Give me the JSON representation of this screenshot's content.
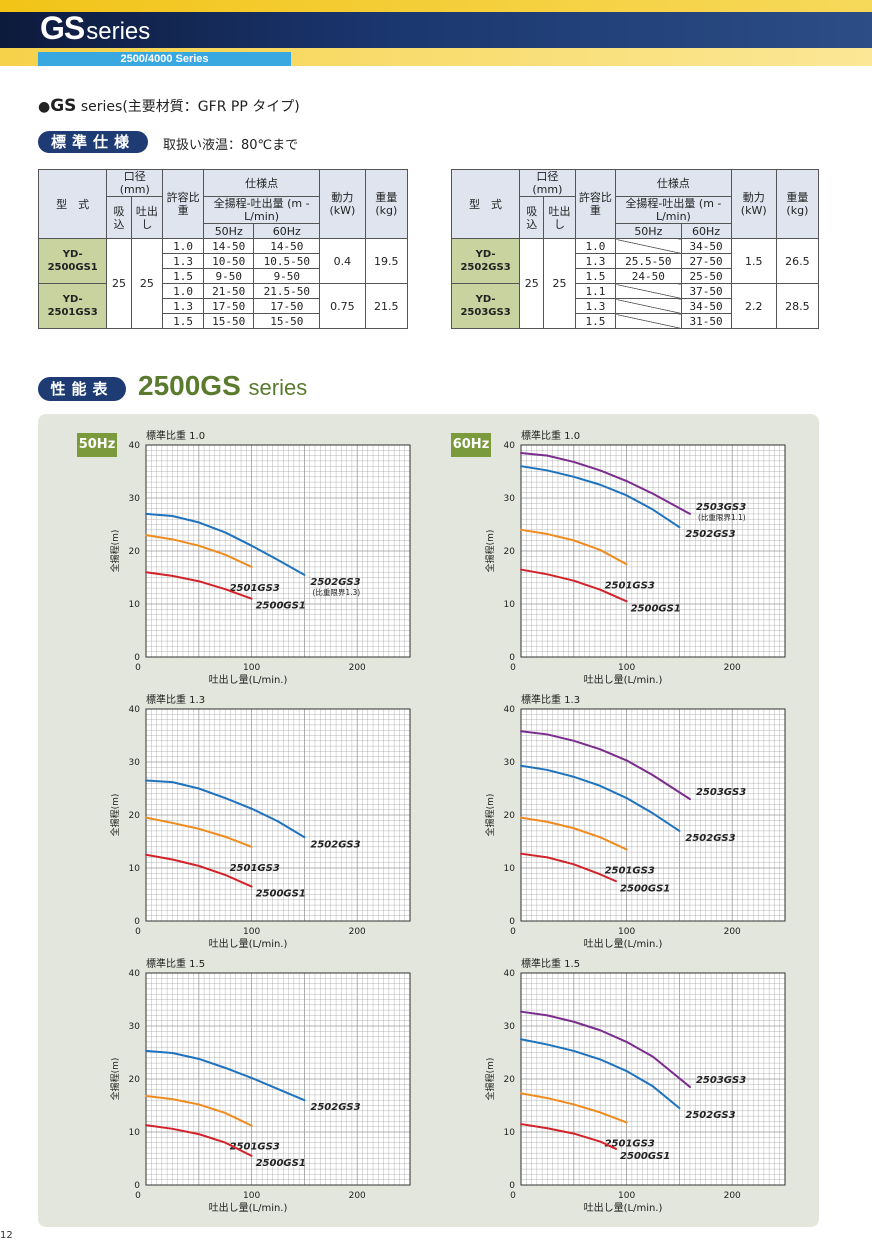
{
  "header": {
    "logo_main": "GS",
    "logo_sub": "series",
    "subtab": "2500/4000 Series"
  },
  "page_title": {
    "bullet": "●",
    "main": "GS",
    "rest": " series(主要材質：GFR PP タイプ)"
  },
  "spec": {
    "badge": "標準仕様",
    "liquid_temp": "取扱い液温：80℃まで"
  },
  "spec_table": {
    "headers": {
      "model": "型　式",
      "bore": "口径(mm)",
      "suction": "吸込",
      "discharge": "吐出し",
      "gravity": "許容比重",
      "spec_point": "仕様点",
      "spec_sub": "全揚程-吐出量 (m - L/min)",
      "hz50": "50Hz",
      "hz60": "60Hz",
      "power": "動力(kW)",
      "weight": "重量(kg)"
    },
    "left": {
      "bore_suction": "25",
      "bore_discharge": "25",
      "models": [
        {
          "name": "YD-2500GS1",
          "power": "0.4",
          "weight": "19.5",
          "rows": [
            [
              "1.0",
              "14-50",
              "14-50"
            ],
            [
              "1.3",
              "10-50",
              "10.5-50"
            ],
            [
              "1.5",
              "9-50",
              "9-50"
            ]
          ]
        },
        {
          "name": "YD-2501GS3",
          "power": "0.75",
          "weight": "21.5",
          "rows": [
            [
              "1.0",
              "21-50",
              "21.5-50"
            ],
            [
              "1.3",
              "17-50",
              "17-50"
            ],
            [
              "1.5",
              "15-50",
              "15-50"
            ]
          ]
        }
      ]
    },
    "right": {
      "bore_suction": "25",
      "bore_discharge": "25",
      "models": [
        {
          "name": "YD-2502GS3",
          "power": "1.5",
          "weight": "26.5",
          "rows": [
            [
              "1.0",
              "",
              "34-50"
            ],
            [
              "1.3",
              "25.5-50",
              "27-50"
            ],
            [
              "1.5",
              "24-50",
              "25-50"
            ]
          ]
        },
        {
          "name": "YD-2503GS3",
          "power": "2.2",
          "weight": "28.5",
          "rows": [
            [
              "1.1",
              "",
              "37-50"
            ],
            [
              "1.3",
              "",
              "34-50"
            ],
            [
              "1.5",
              "",
              "31-50"
            ]
          ]
        }
      ]
    }
  },
  "performance": {
    "badge": "性能表",
    "title": "2500GS",
    "title_suffix": "series",
    "hz50": "50Hz",
    "hz60": "60Hz"
  },
  "colors": {
    "2500GS1": "#d2232a",
    "2501GS3": "#f08c1e",
    "2502GS3": "#1e73be",
    "2503GS3": "#7b2d8e",
    "grid": "#9a9a9a"
  },
  "chart_data": [
    {
      "type": "line",
      "title": "標準比重 1.0",
      "frequency": "50Hz",
      "xlabel": "吐出し量(L/min.)",
      "ylabel": "全揚程(m)",
      "xlim": [
        0,
        250
      ],
      "ylim": [
        0,
        40
      ],
      "xticks": [
        0,
        100,
        200
      ],
      "yticks": [
        0,
        10,
        20,
        30,
        40
      ],
      "grid": true,
      "series": [
        {
          "name": "2502GS3",
          "note": "(比重限界1.3)",
          "color": "#1e73be",
          "x": [
            0,
            25,
            50,
            75,
            100,
            125,
            150
          ],
          "y": [
            27,
            26.6,
            25.4,
            23.5,
            21,
            18.3,
            15.5
          ]
        },
        {
          "name": "2501GS3",
          "color": "#f08c1e",
          "x": [
            0,
            25,
            50,
            75,
            100
          ],
          "y": [
            23,
            22.2,
            21,
            19.3,
            17
          ]
        },
        {
          "name": "2500GS1",
          "color": "#d2232a",
          "x": [
            0,
            25,
            50,
            75,
            100
          ],
          "y": [
            16,
            15.3,
            14.3,
            12.8,
            11
          ]
        }
      ]
    },
    {
      "type": "line",
      "title": "標準比重 1.0",
      "frequency": "60Hz",
      "xlabel": "吐出し量(L/min.)",
      "ylabel": "全揚程(m)",
      "xlim": [
        0,
        250
      ],
      "ylim": [
        0,
        40
      ],
      "xticks": [
        0,
        100,
        200
      ],
      "yticks": [
        0,
        10,
        20,
        30,
        40
      ],
      "grid": true,
      "series": [
        {
          "name": "2503GS3",
          "note": "(比重限界1.1)",
          "color": "#7b2d8e",
          "x": [
            0,
            25,
            50,
            75,
            100,
            125,
            160
          ],
          "y": [
            38.5,
            38,
            36.8,
            35.2,
            33.2,
            30.8,
            27
          ]
        },
        {
          "name": "2502GS3",
          "color": "#1e73be",
          "x": [
            0,
            25,
            50,
            75,
            100,
            125,
            150
          ],
          "y": [
            36,
            35.2,
            34,
            32.5,
            30.5,
            27.8,
            24.5
          ]
        },
        {
          "name": "2501GS3",
          "color": "#f08c1e",
          "x": [
            0,
            25,
            50,
            75,
            100
          ],
          "y": [
            24,
            23.2,
            22,
            20.2,
            17.5
          ]
        },
        {
          "name": "2500GS1",
          "color": "#d2232a",
          "x": [
            0,
            25,
            50,
            75,
            100
          ],
          "y": [
            16.5,
            15.6,
            14.4,
            12.7,
            10.5
          ]
        }
      ]
    },
    {
      "type": "line",
      "title": "標準比重 1.3",
      "frequency": "50Hz",
      "xlabel": "吐出し量(L/min.)",
      "ylabel": "全揚程(m)",
      "xlim": [
        0,
        250
      ],
      "ylim": [
        0,
        40
      ],
      "xticks": [
        0,
        100,
        200
      ],
      "yticks": [
        0,
        10,
        20,
        30,
        40
      ],
      "grid": true,
      "series": [
        {
          "name": "2502GS3",
          "color": "#1e73be",
          "x": [
            0,
            25,
            50,
            75,
            100,
            125,
            150
          ],
          "y": [
            26.5,
            26.2,
            25,
            23.2,
            21.2,
            18.8,
            15.8
          ]
        },
        {
          "name": "2501GS3",
          "color": "#f08c1e",
          "x": [
            0,
            25,
            50,
            75,
            100
          ],
          "y": [
            19.5,
            18.5,
            17.4,
            15.9,
            14
          ]
        },
        {
          "name": "2500GS1",
          "color": "#d2232a",
          "x": [
            0,
            25,
            50,
            75,
            100
          ],
          "y": [
            12.5,
            11.6,
            10.4,
            8.7,
            6.5
          ]
        }
      ]
    },
    {
      "type": "line",
      "title": "標準比重 1.3",
      "frequency": "60Hz",
      "xlabel": "吐出し量(L/min.)",
      "ylabel": "全揚程(m)",
      "xlim": [
        0,
        250
      ],
      "ylim": [
        0,
        40
      ],
      "xticks": [
        0,
        100,
        200
      ],
      "yticks": [
        0,
        10,
        20,
        30,
        40
      ],
      "grid": true,
      "series": [
        {
          "name": "2503GS3",
          "color": "#7b2d8e",
          "x": [
            0,
            25,
            50,
            75,
            100,
            125,
            160
          ],
          "y": [
            35.8,
            35.2,
            34,
            32.4,
            30.3,
            27.5,
            23
          ]
        },
        {
          "name": "2502GS3",
          "color": "#1e73be",
          "x": [
            0,
            25,
            50,
            75,
            100,
            125,
            150
          ],
          "y": [
            29.3,
            28.5,
            27.2,
            25.5,
            23.2,
            20.3,
            17
          ]
        },
        {
          "name": "2501GS3",
          "color": "#f08c1e",
          "x": [
            0,
            25,
            50,
            75,
            100
          ],
          "y": [
            19.5,
            18.7,
            17.5,
            15.8,
            13.5
          ]
        },
        {
          "name": "2500GS1",
          "color": "#d2232a",
          "x": [
            0,
            25,
            50,
            75,
            90
          ],
          "y": [
            12.7,
            12,
            10.7,
            8.8,
            7.5
          ]
        }
      ]
    },
    {
      "type": "line",
      "title": "標準比重 1.5",
      "frequency": "50Hz",
      "xlabel": "吐出し量(L/min.)",
      "ylabel": "全揚程(m)",
      "xlim": [
        0,
        250
      ],
      "ylim": [
        0,
        40
      ],
      "xticks": [
        0,
        100,
        200
      ],
      "yticks": [
        0,
        10,
        20,
        30,
        40
      ],
      "grid": true,
      "series": [
        {
          "name": "2502GS3",
          "color": "#1e73be",
          "x": [
            0,
            25,
            50,
            75,
            100,
            125,
            150
          ],
          "y": [
            25.3,
            24.9,
            23.8,
            22.1,
            20.2,
            18.1,
            16
          ]
        },
        {
          "name": "2501GS3",
          "color": "#f08c1e",
          "x": [
            0,
            25,
            50,
            75,
            100
          ],
          "y": [
            16.8,
            16.2,
            15.2,
            13.6,
            11.2
          ]
        },
        {
          "name": "2500GS1",
          "color": "#d2232a",
          "x": [
            0,
            25,
            50,
            75,
            100
          ],
          "y": [
            11.3,
            10.6,
            9.6,
            8,
            5.5
          ]
        }
      ]
    },
    {
      "type": "line",
      "title": "標準比重 1.5",
      "frequency": "60Hz",
      "xlabel": "吐出し量(L/min.)",
      "ylabel": "全揚程(m)",
      "xlim": [
        0,
        250
      ],
      "ylim": [
        0,
        40
      ],
      "xticks": [
        0,
        100,
        200
      ],
      "yticks": [
        0,
        10,
        20,
        30,
        40
      ],
      "grid": true,
      "series": [
        {
          "name": "2503GS3",
          "color": "#7b2d8e",
          "x": [
            0,
            25,
            50,
            75,
            100,
            125,
            160
          ],
          "y": [
            32.7,
            32,
            30.8,
            29.2,
            27,
            24.2,
            18.5
          ]
        },
        {
          "name": "2502GS3",
          "color": "#1e73be",
          "x": [
            0,
            25,
            50,
            75,
            100,
            125,
            150
          ],
          "y": [
            27.5,
            26.5,
            25.3,
            23.7,
            21.5,
            18.6,
            14.5
          ]
        },
        {
          "name": "2501GS3",
          "color": "#f08c1e",
          "x": [
            0,
            25,
            50,
            75,
            100
          ],
          "y": [
            17.3,
            16.4,
            15.2,
            13.7,
            11.8
          ]
        },
        {
          "name": "2500GS1",
          "color": "#d2232a",
          "x": [
            0,
            25,
            50,
            75,
            90
          ],
          "y": [
            11.5,
            10.7,
            9.7,
            8.2,
            6.8
          ]
        }
      ]
    }
  ],
  "page_number": "12"
}
